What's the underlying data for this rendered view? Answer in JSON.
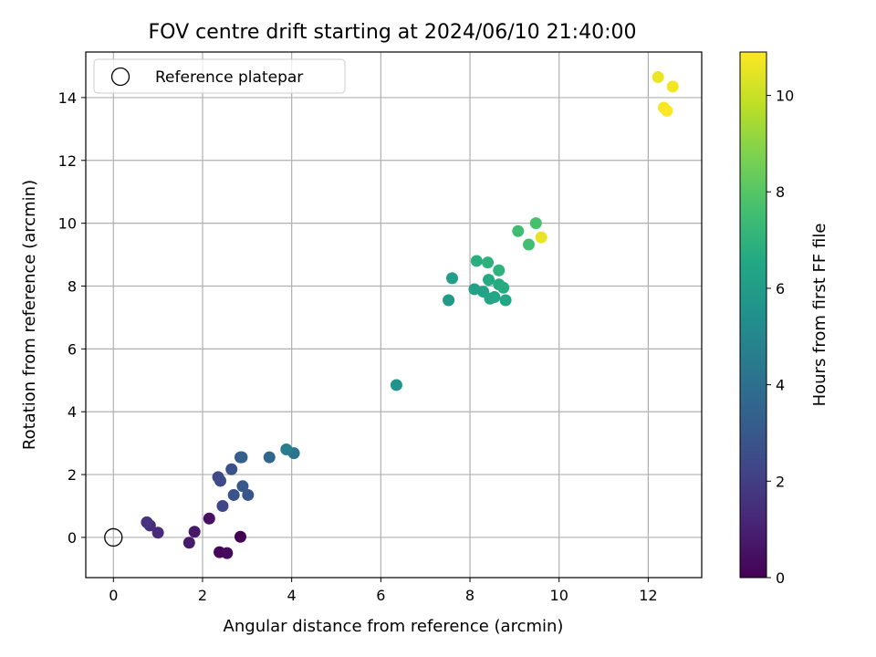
{
  "chart_data": {
    "type": "scatter",
    "title": "FOV centre drift starting at 2024/06/10 21:40:00",
    "xlabel": "Angular distance from reference (arcmin)",
    "ylabel": "Rotation from reference (arcmin)",
    "xlim": [
      -0.62,
      13.2
    ],
    "ylim": [
      -1.28,
      15.45
    ],
    "xticks": [
      0,
      2,
      4,
      6,
      8,
      10,
      12
    ],
    "yticks": [
      0,
      2,
      4,
      6,
      8,
      10,
      12,
      14
    ],
    "grid": true,
    "legend": {
      "placement": "top-left",
      "label": "Reference platepar"
    },
    "reference_point": {
      "x": 0,
      "y": 0
    },
    "colorbar": {
      "label": "Hours from first FF file",
      "range": [
        0,
        10.9
      ],
      "ticks": [
        0,
        2,
        4,
        6,
        8,
        10
      ],
      "colormap": "viridis"
    },
    "points": [
      {
        "x": 2.85,
        "y": 0.02,
        "h": 0.0
      },
      {
        "x": 2.38,
        "y": -0.47,
        "h": 0.2
      },
      {
        "x": 2.55,
        "y": -0.5,
        "h": 0.3
      },
      {
        "x": 2.15,
        "y": 0.6,
        "h": 0.5
      },
      {
        "x": 1.82,
        "y": 0.18,
        "h": 0.7
      },
      {
        "x": 1.7,
        "y": -0.17,
        "h": 0.8
      },
      {
        "x": 1.0,
        "y": 0.15,
        "h": 1.3
      },
      {
        "x": 0.82,
        "y": 0.38,
        "h": 1.4
      },
      {
        "x": 0.75,
        "y": 0.48,
        "h": 1.6
      },
      {
        "x": 2.45,
        "y": 1.0,
        "h": 2.3
      },
      {
        "x": 2.35,
        "y": 1.92,
        "h": 2.4
      },
      {
        "x": 2.4,
        "y": 1.8,
        "h": 2.5
      },
      {
        "x": 2.65,
        "y": 2.17,
        "h": 2.7
      },
      {
        "x": 2.7,
        "y": 1.35,
        "h": 2.8
      },
      {
        "x": 3.02,
        "y": 1.35,
        "h": 2.9
      },
      {
        "x": 2.9,
        "y": 1.63,
        "h": 3.0
      },
      {
        "x": 2.85,
        "y": 2.55,
        "h": 3.2
      },
      {
        "x": 2.88,
        "y": 2.55,
        "h": 3.3
      },
      {
        "x": 3.5,
        "y": 2.55,
        "h": 3.6
      },
      {
        "x": 4.05,
        "y": 2.68,
        "h": 4.1
      },
      {
        "x": 3.88,
        "y": 2.8,
        "h": 4.6
      },
      {
        "x": 6.35,
        "y": 4.85,
        "h": 5.6
      },
      {
        "x": 7.52,
        "y": 7.55,
        "h": 5.9
      },
      {
        "x": 7.6,
        "y": 8.25,
        "h": 6.0
      },
      {
        "x": 8.1,
        "y": 7.9,
        "h": 6.2
      },
      {
        "x": 8.3,
        "y": 7.82,
        "h": 6.3
      },
      {
        "x": 8.45,
        "y": 7.6,
        "h": 6.4
      },
      {
        "x": 8.55,
        "y": 7.65,
        "h": 6.45
      },
      {
        "x": 8.8,
        "y": 7.55,
        "h": 6.5
      },
      {
        "x": 8.42,
        "y": 8.2,
        "h": 6.6
      },
      {
        "x": 8.65,
        "y": 8.05,
        "h": 6.65
      },
      {
        "x": 8.75,
        "y": 7.95,
        "h": 6.7
      },
      {
        "x": 8.15,
        "y": 8.8,
        "h": 6.8
      },
      {
        "x": 8.4,
        "y": 8.75,
        "h": 6.9
      },
      {
        "x": 8.65,
        "y": 8.5,
        "h": 7.0
      },
      {
        "x": 9.08,
        "y": 9.75,
        "h": 7.5
      },
      {
        "x": 9.32,
        "y": 9.32,
        "h": 7.6
      },
      {
        "x": 9.48,
        "y": 10.0,
        "h": 7.7
      },
      {
        "x": 9.6,
        "y": 9.55,
        "h": 10.5
      },
      {
        "x": 12.22,
        "y": 14.65,
        "h": 10.6
      },
      {
        "x": 12.55,
        "y": 14.35,
        "h": 10.7
      },
      {
        "x": 12.35,
        "y": 13.68,
        "h": 10.8
      },
      {
        "x": 12.42,
        "y": 13.58,
        "h": 10.9
      }
    ]
  }
}
